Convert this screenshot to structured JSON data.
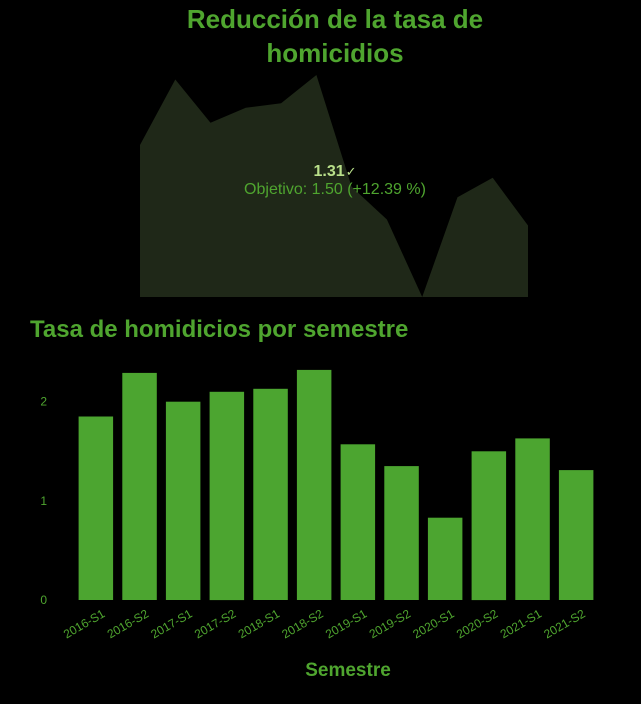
{
  "kpi": {
    "title": "Reducción de la tasa de homicidios",
    "value": "1.31",
    "goal_text": "Objetivo: 1.50 (+12.39 %)",
    "status_icon": "check-icon",
    "trend_values": [
      1.85,
      2.29,
      2.0,
      2.1,
      2.13,
      2.32,
      1.57,
      1.35,
      0.83,
      1.5,
      1.63,
      1.31
    ]
  },
  "chart_title": "Tasa de homidicios por semestre",
  "x_axis_title": "Semestre",
  "colors": {
    "accent": "#4fa52f",
    "bar": "#4ca530",
    "area": "#1f2818",
    "value": "#b9e08a",
    "background": "#000000"
  },
  "chart_data": {
    "type": "bar",
    "title": "Tasa de homidicios por semestre",
    "xlabel": "Semestre",
    "ylabel": "",
    "categories": [
      "2016-S1",
      "2016-S2",
      "2017-S1",
      "2017-S2",
      "2018-S1",
      "2018-S2",
      "2019-S1",
      "2019-S2",
      "2020-S1",
      "2020-S2",
      "2021-S1",
      "2021-S2"
    ],
    "values": [
      1.85,
      2.29,
      2.0,
      2.1,
      2.13,
      2.32,
      1.57,
      1.35,
      0.83,
      1.5,
      1.63,
      1.31
    ],
    "ylim": [
      0,
      2.4
    ],
    "yticks": [
      0,
      1,
      2
    ],
    "grid": false,
    "legend": "none"
  }
}
